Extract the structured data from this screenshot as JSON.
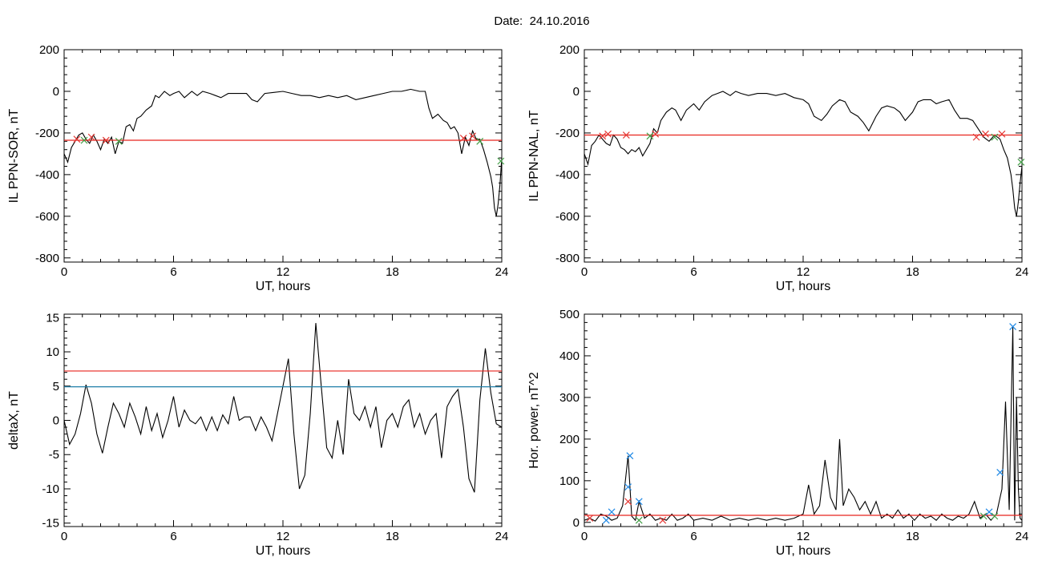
{
  "title": {
    "label": "Date:",
    "date": "24.10.2016"
  },
  "colors": {
    "trace": "#000000",
    "threshold_red": "#e8241f",
    "threshold_blue": "#1f7fa8",
    "disturbed_trace": "#1565c0",
    "marker_red": "#e53935",
    "marker_green": "#43a047",
    "marker_blue": "#1e88e5"
  },
  "chart_data": [
    {
      "id": "panel-il-sor",
      "type": "line",
      "xlabel": "UT, hours",
      "ylabel": "IL PPN-SOR, nT",
      "xlim": [
        0,
        24
      ],
      "ylim": [
        -820,
        200
      ],
      "xticks": [
        "0",
        "6",
        "12",
        "18",
        "24"
      ],
      "yticks": [
        "200",
        "0",
        "-200",
        "-400",
        "-600",
        "-800"
      ],
      "threshold": {
        "color": "red",
        "y": -235
      },
      "series": [
        {
          "values_x": [
            0,
            0.2,
            0.4,
            0.6,
            0.8,
            1,
            1.2,
            1.4,
            1.6,
            1.8,
            2,
            2.2,
            2.4,
            2.6,
            2.8,
            3,
            3.2,
            3.4,
            3.6,
            3.8,
            4,
            4.2,
            4.5,
            4.8,
            5,
            5.2,
            5.5,
            5.8,
            6,
            6.3,
            6.6,
            7,
            7.3,
            7.6,
            8,
            8.3,
            8.6,
            9,
            9.5,
            10,
            10.3,
            10.6,
            11,
            11.5,
            12,
            12.5,
            13,
            13.5,
            14,
            14.5,
            15,
            15.5,
            16,
            16.5,
            17,
            17.5,
            18,
            18.5,
            19,
            19.5,
            19.8,
            20,
            20.2,
            20.5,
            20.8,
            21,
            21.2,
            21.4,
            21.6,
            21.8,
            22,
            22.2,
            22.4,
            22.6,
            22.8,
            23,
            23.2,
            23.4,
            23.5,
            23.6,
            23.7,
            23.8,
            23.9,
            24
          ],
          "values_y": [
            -300,
            -340,
            -270,
            -240,
            -210,
            -200,
            -230,
            -250,
            -210,
            -240,
            -280,
            -230,
            -250,
            -220,
            -300,
            -240,
            -250,
            -170,
            -160,
            -190,
            -130,
            -120,
            -90,
            -70,
            -20,
            -30,
            0,
            -20,
            -10,
            0,
            -30,
            0,
            -20,
            0,
            -10,
            -20,
            -30,
            -10,
            -10,
            -10,
            -40,
            -50,
            -10,
            -5,
            0,
            -10,
            -20,
            -20,
            -30,
            -20,
            -30,
            -20,
            -40,
            -30,
            -20,
            -10,
            0,
            0,
            10,
            0,
            0,
            -80,
            -130,
            -110,
            -140,
            -150,
            -180,
            -170,
            -200,
            -300,
            -220,
            -260,
            -190,
            -230,
            -230,
            -280,
            -340,
            -410,
            -460,
            -560,
            -600,
            -540,
            -450,
            -320
          ]
        }
      ],
      "markers": [
        {
          "x": 0.7,
          "y": -230,
          "color": "red"
        },
        {
          "x": 1.1,
          "y": -235,
          "color": "green"
        },
        {
          "x": 1.5,
          "y": -220,
          "color": "red"
        },
        {
          "x": 2.3,
          "y": -235,
          "color": "red"
        },
        {
          "x": 3.0,
          "y": -240,
          "color": "green"
        },
        {
          "x": 21.9,
          "y": -225,
          "color": "red"
        },
        {
          "x": 22.4,
          "y": -215,
          "color": "red"
        },
        {
          "x": 22.8,
          "y": -240,
          "color": "green"
        },
        {
          "x": 23.95,
          "y": -335,
          "color": "green"
        }
      ]
    },
    {
      "id": "panel-il-nal",
      "type": "line",
      "xlabel": "UT, hours",
      "ylabel": "IL PPN-NAL, nT",
      "xlim": [
        0,
        24
      ],
      "ylim": [
        -820,
        200
      ],
      "xticks": [
        "0",
        "6",
        "12",
        "18",
        "24"
      ],
      "yticks": [
        "200",
        "0",
        "-200",
        "-400",
        "-600",
        "-800"
      ],
      "threshold": {
        "color": "red",
        "y": -210
      },
      "series": [
        {
          "values_x": [
            0,
            0.2,
            0.4,
            0.6,
            0.8,
            1,
            1.2,
            1.4,
            1.6,
            1.8,
            2,
            2.2,
            2.4,
            2.6,
            2.8,
            3,
            3.2,
            3.4,
            3.6,
            3.8,
            4,
            4.2,
            4.5,
            4.8,
            5,
            5.3,
            5.6,
            6,
            6.3,
            6.6,
            7,
            7.3,
            7.6,
            8,
            8.3,
            8.6,
            9,
            9.5,
            10,
            10.5,
            11,
            11.5,
            12,
            12.3,
            12.6,
            13,
            13.3,
            13.6,
            14,
            14.3,
            14.6,
            15,
            15.3,
            15.6,
            16,
            16.3,
            16.6,
            17,
            17.3,
            17.6,
            18,
            18.3,
            18.6,
            19,
            19.3,
            19.6,
            20,
            20.3,
            20.6,
            21,
            21.3,
            21.6,
            21.9,
            22.2,
            22.5,
            22.8,
            23,
            23.2,
            23.4,
            23.5,
            23.6,
            23.7,
            23.8,
            23.9,
            24
          ],
          "values_y": [
            -300,
            -350,
            -260,
            -240,
            -210,
            -230,
            -250,
            -260,
            -210,
            -230,
            -270,
            -280,
            -300,
            -280,
            -290,
            -270,
            -310,
            -280,
            -250,
            -180,
            -200,
            -140,
            -100,
            -80,
            -90,
            -140,
            -90,
            -60,
            -90,
            -50,
            -20,
            -10,
            0,
            -20,
            0,
            -10,
            -20,
            -10,
            -10,
            -20,
            -10,
            -30,
            -40,
            -60,
            -120,
            -140,
            -110,
            -70,
            -40,
            -50,
            -100,
            -120,
            -150,
            -190,
            -120,
            -80,
            -70,
            -80,
            -100,
            -140,
            -100,
            -50,
            -40,
            -40,
            -60,
            -50,
            -40,
            -90,
            -130,
            -130,
            -140,
            -180,
            -220,
            -240,
            -210,
            -230,
            -280,
            -320,
            -400,
            -470,
            -560,
            -600,
            -530,
            -440,
            -360
          ]
        }
      ],
      "markers": [
        {
          "x": 1.0,
          "y": -215,
          "color": "red"
        },
        {
          "x": 1.3,
          "y": -205,
          "color": "red"
        },
        {
          "x": 2.3,
          "y": -210,
          "color": "red"
        },
        {
          "x": 3.6,
          "y": -215,
          "color": "green"
        },
        {
          "x": 3.9,
          "y": -205,
          "color": "red"
        },
        {
          "x": 21.5,
          "y": -220,
          "color": "red"
        },
        {
          "x": 22.0,
          "y": -205,
          "color": "red"
        },
        {
          "x": 22.5,
          "y": -220,
          "color": "green"
        },
        {
          "x": 22.9,
          "y": -205,
          "color": "red"
        },
        {
          "x": 23.95,
          "y": -340,
          "color": "green"
        }
      ]
    },
    {
      "id": "panel-deltax",
      "type": "line",
      "xlabel": "UT, hours",
      "ylabel": "deltaX, nT",
      "xlim": [
        0,
        24
      ],
      "ylim": [
        -15.5,
        15.5
      ],
      "xticks": [
        "0",
        "6",
        "12",
        "18",
        "24"
      ],
      "yticks": [
        "15",
        "10",
        "5",
        "0",
        "-5",
        "-10",
        "-15"
      ],
      "thresholds": [
        {
          "color": "red",
          "y": 7.2
        },
        {
          "color": "blue",
          "y": 4.9
        }
      ],
      "series": [
        {
          "values_x": [
            0,
            0.3,
            0.6,
            0.9,
            1.2,
            1.5,
            1.8,
            2.1,
            2.4,
            2.7,
            3,
            3.3,
            3.6,
            3.9,
            4.2,
            4.5,
            4.8,
            5.1,
            5.4,
            5.7,
            6,
            6.3,
            6.6,
            6.9,
            7.2,
            7.5,
            7.8,
            8.1,
            8.4,
            8.7,
            9,
            9.3,
            9.6,
            9.9,
            10.2,
            10.5,
            10.8,
            11.1,
            11.4,
            11.7,
            12,
            12.3,
            12.6,
            12.9,
            13.2,
            13.5,
            13.8,
            14.1,
            14.4,
            14.7,
            15,
            15.3,
            15.6,
            15.9,
            16.2,
            16.5,
            16.8,
            17.1,
            17.4,
            17.7,
            18,
            18.3,
            18.6,
            18.9,
            19.2,
            19.5,
            19.8,
            20.1,
            20.4,
            20.7,
            21,
            21.3,
            21.6,
            21.9,
            22.2,
            22.5,
            22.8,
            23.1,
            23.4,
            23.7,
            24
          ],
          "values_y": [
            0,
            -3.5,
            -2,
            1,
            5.2,
            2.5,
            -2,
            -4.8,
            -1,
            2.5,
            1,
            -1,
            2.5,
            0.5,
            -2,
            2,
            -1.5,
            1,
            -2.5,
            0,
            3.5,
            -1,
            1.5,
            0,
            -0.5,
            0.5,
            -1.5,
            0.5,
            -1.5,
            0.8,
            -0.5,
            3.5,
            0,
            0.5,
            0.5,
            -1.5,
            0.5,
            -1,
            -3,
            1,
            5,
            9,
            -2,
            -10,
            -8,
            1,
            14.2,
            5,
            -4,
            -5.5,
            0,
            -5,
            6,
            1,
            0,
            2,
            -1,
            2,
            -4,
            0,
            1,
            -1,
            2,
            3,
            -1,
            1,
            -2,
            0,
            1,
            -5.5,
            2,
            3.5,
            4.5,
            -1,
            -8.5,
            -10.5,
            3,
            10.5,
            4,
            -0.5,
            -1
          ]
        }
      ]
    },
    {
      "id": "panel-hor-power",
      "type": "line",
      "xlabel": "UT, hours",
      "ylabel": "Hor. power, nT^2",
      "xlim": [
        0,
        24
      ],
      "ylim": [
        -10,
        500
      ],
      "xticks": [
        "0",
        "6",
        "12",
        "18",
        "24"
      ],
      "yticks": [
        "500",
        "400",
        "300",
        "200",
        "100",
        "0"
      ],
      "threshold": {
        "color": "red",
        "y": 17
      },
      "series": [
        {
          "values_x": [
            0,
            0.3,
            0.6,
            0.9,
            1.2,
            1.5,
            1.8,
            2.1,
            2.4,
            2.6,
            2.8,
            3,
            3.3,
            3.6,
            3.9,
            4.2,
            4.5,
            4.8,
            5.1,
            5.4,
            5.7,
            6,
            6.5,
            7,
            7.5,
            8,
            8.5,
            9,
            9.5,
            10,
            10.5,
            11,
            11.5,
            12,
            12.3,
            12.6,
            12.9,
            13.2,
            13.5,
            13.8,
            14,
            14.2,
            14.5,
            14.8,
            15.1,
            15.4,
            15.7,
            16,
            16.3,
            16.6,
            16.9,
            17.2,
            17.5,
            17.8,
            18.1,
            18.4,
            18.7,
            19,
            19.3,
            19.6,
            19.9,
            20.2,
            20.5,
            20.8,
            21.1,
            21.4,
            21.7,
            22,
            22.3,
            22.6,
            22.9,
            23.1,
            23.3,
            23.5,
            23.6,
            23.7,
            23.8,
            23.9,
            24
          ],
          "values_y": [
            5,
            10,
            3,
            20,
            15,
            5,
            10,
            40,
            160,
            15,
            5,
            50,
            10,
            20,
            5,
            10,
            5,
            20,
            5,
            10,
            20,
            5,
            10,
            5,
            15,
            5,
            10,
            5,
            10,
            5,
            10,
            5,
            10,
            20,
            90,
            20,
            40,
            150,
            60,
            30,
            200,
            40,
            80,
            60,
            30,
            50,
            20,
            50,
            10,
            20,
            10,
            30,
            10,
            20,
            5,
            20,
            10,
            15,
            5,
            20,
            10,
            5,
            15,
            10,
            20,
            50,
            10,
            20,
            5,
            20,
            80,
            290,
            30,
            470,
            5,
            300,
            80,
            10,
            5
          ]
        }
      ],
      "markers": [
        {
          "x": 0.3,
          "y": 10,
          "color": "red"
        },
        {
          "x": 1.2,
          "y": 5,
          "color": "blue"
        },
        {
          "x": 1.5,
          "y": 25,
          "color": "blue"
        },
        {
          "x": 2.4,
          "y": 50,
          "color": "red"
        },
        {
          "x": 2.4,
          "y": 85,
          "color": "blue"
        },
        {
          "x": 2.5,
          "y": 160,
          "color": "blue"
        },
        {
          "x": 3.0,
          "y": 50,
          "color": "blue"
        },
        {
          "x": 3.0,
          "y": 5,
          "color": "green"
        },
        {
          "x": 4.3,
          "y": 5,
          "color": "red"
        },
        {
          "x": 21.9,
          "y": 15,
          "color": "green"
        },
        {
          "x": 22.2,
          "y": 25,
          "color": "blue"
        },
        {
          "x": 22.5,
          "y": 15,
          "color": "green"
        },
        {
          "x": 22.8,
          "y": 120,
          "color": "blue"
        },
        {
          "x": 23.5,
          "y": 470,
          "color": "blue"
        }
      ]
    }
  ]
}
